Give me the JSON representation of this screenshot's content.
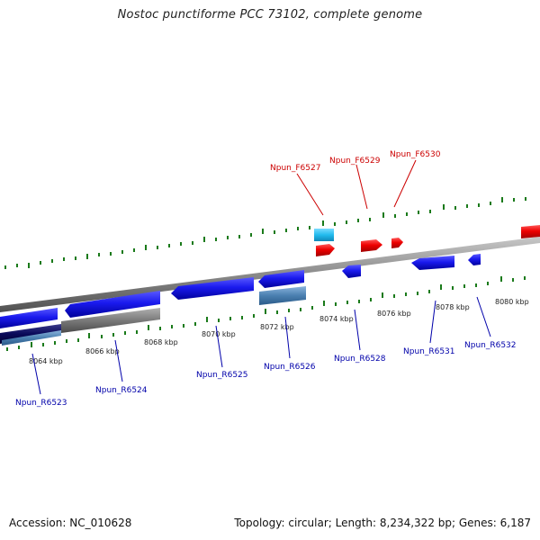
{
  "title": "Nostoc punctiforme PCC 73102, complete genome",
  "footer": {
    "accession": "Accession: NC_010628",
    "summary": "Topology: circular; Length: 8,234,322 bp; Genes: 6,187"
  },
  "colors": {
    "forward_label": "#cc0000",
    "reverse_label": "#0000aa",
    "forward_gene": "#ee0000",
    "reverse_gene": "#1a1aee",
    "light_gene": "#22bbee",
    "steel_gene": "#4a7fb0",
    "navy_gene": "#0a0a5a",
    "gray_gene": "#7a7a7a",
    "backbone": "#8a8a8a",
    "tick": "#1a7a1a"
  },
  "ticks": [
    {
      "label": "8064 kbp"
    },
    {
      "label": "8066 kbp"
    },
    {
      "label": "8068 kbp"
    },
    {
      "label": "8070 kbp"
    },
    {
      "label": "8072 kbp"
    },
    {
      "label": "8074 kbp"
    },
    {
      "label": "8076 kbp"
    },
    {
      "label": "8078 kbp"
    },
    {
      "label": "8080 kbp"
    }
  ],
  "forward_labels": [
    {
      "name": "Npun_F6527"
    },
    {
      "name": "Npun_F6529"
    },
    {
      "name": "Npun_F6530"
    }
  ],
  "reverse_labels": [
    {
      "name": "Npun_R6523"
    },
    {
      "name": "Npun_R6524"
    },
    {
      "name": "Npun_R6525"
    },
    {
      "name": "Npun_R6526"
    },
    {
      "name": "Npun_R6528"
    },
    {
      "name": "Npun_R6531"
    },
    {
      "name": "Npun_R6532"
    }
  ]
}
